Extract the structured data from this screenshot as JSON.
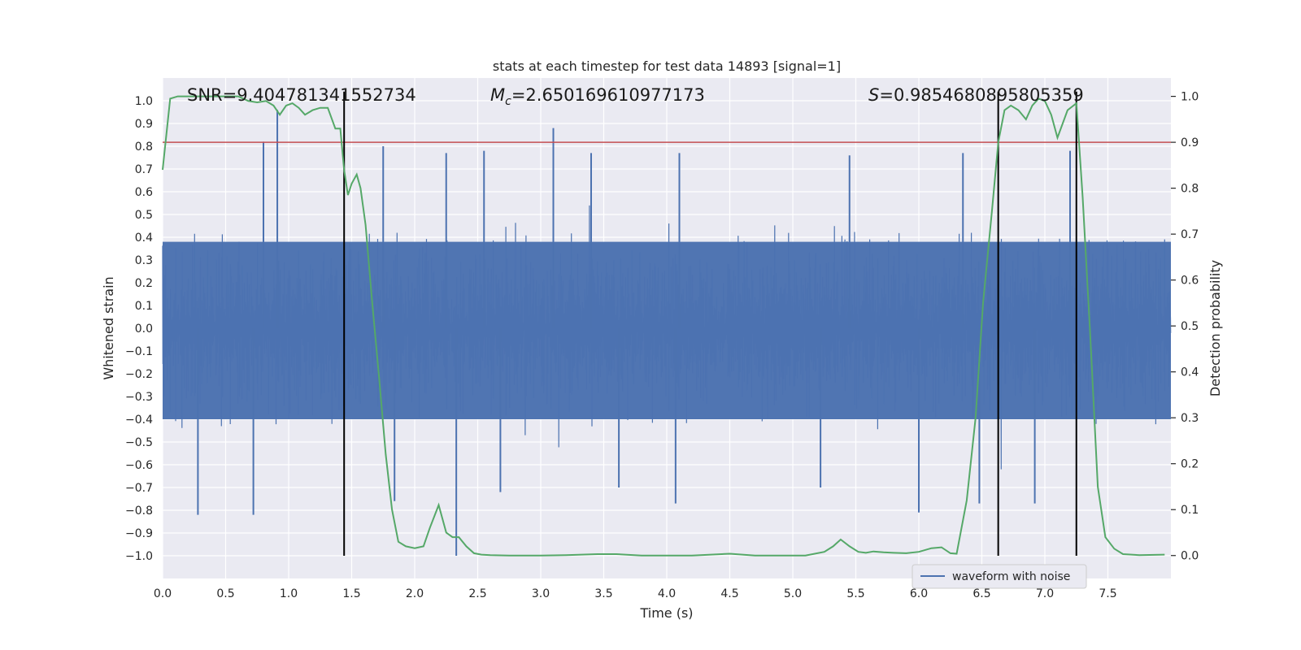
{
  "chart_data": {
    "type": "line",
    "title": "stats at each timestep for test data 14893 [signal=1]",
    "xlabel": "Time (s)",
    "ylabel_left": "Whitened strain",
    "ylabel_right": "Detection probability",
    "xlim": [
      0.0,
      8.0
    ],
    "ylim_left": [
      -1.1,
      1.1
    ],
    "ylim_right": [
      -0.05,
      1.04
    ],
    "xticks": [
      0.0,
      0.5,
      1.0,
      1.5,
      2.0,
      2.5,
      3.0,
      3.5,
      4.0,
      4.5,
      5.0,
      5.5,
      6.0,
      6.5,
      7.0,
      7.5
    ],
    "xtick_labels": [
      "0.0",
      "0.5",
      "1.0",
      "1.5",
      "2.0",
      "2.5",
      "3.0",
      "3.5",
      "4.0",
      "4.5",
      "5.0",
      "5.5",
      "6.0",
      "6.5",
      "7.0",
      "7.5"
    ],
    "yticks_left": [
      1.0,
      0.9,
      0.8,
      0.7,
      0.6,
      0.5,
      0.4,
      0.3,
      0.2,
      0.1,
      0.0,
      -0.1,
      -0.2,
      -0.3,
      -0.4,
      -0.5,
      -0.6,
      -0.7,
      -0.8,
      -0.9,
      -1.0
    ],
    "ytick_labels_left": [
      "1.0",
      "0.9",
      "0.8",
      "0.7",
      "0.6",
      "0.5",
      "0.4",
      "0.3",
      "0.2",
      "0.1",
      "0.0",
      "−0.1",
      "−0.2",
      "−0.3",
      "−0.4",
      "−0.5",
      "−0.6",
      "−0.7",
      "−0.8",
      "−0.9",
      "−1.0"
    ],
    "yticks_right": [
      1.0,
      0.9,
      0.8,
      0.7,
      0.6,
      0.5,
      0.4,
      0.3,
      0.2,
      0.1,
      0.0
    ],
    "ytick_labels_right": [
      "1.0",
      "0.9",
      "0.8",
      "0.7",
      "0.6",
      "0.5",
      "0.4",
      "0.3",
      "0.2",
      "0.1",
      "0.0"
    ],
    "grid": true,
    "annotations": {
      "snr": "SNR=9.404781341552734",
      "mc_symbol": "M",
      "mc_sub": "c",
      "mc_value": "=2.650169610977173",
      "s_symbol": "S",
      "s_value": "=0.9854680895805359"
    },
    "threshold": {
      "value": 0.9,
      "axis": "right",
      "color": "#c44e52"
    },
    "vertical_lines": [
      1.44,
      6.63,
      7.25
    ],
    "waveform": {
      "name": "waveform with noise",
      "color": "#4c72b0",
      "typical_envelope_upper": 0.38,
      "typical_envelope_lower": -0.4,
      "spikes": [
        [
          0.91,
          0.96
        ],
        [
          0.8,
          0.82
        ],
        [
          3.1,
          0.88
        ],
        [
          1.75,
          0.8
        ],
        [
          2.25,
          0.77
        ],
        [
          2.55,
          0.78
        ],
        [
          3.4,
          0.77
        ],
        [
          4.1,
          0.77
        ],
        [
          5.45,
          0.76
        ],
        [
          6.35,
          0.77
        ],
        [
          7.2,
          0.78
        ],
        [
          0.28,
          -0.82
        ],
        [
          0.72,
          -0.82
        ],
        [
          1.84,
          -0.76
        ],
        [
          2.33,
          -1.0
        ],
        [
          4.07,
          -0.77
        ],
        [
          6.0,
          -0.81
        ],
        [
          6.48,
          -0.77
        ],
        [
          6.92,
          -0.77
        ],
        [
          2.68,
          -0.72
        ],
        [
          3.62,
          -0.7
        ],
        [
          5.22,
          -0.7
        ]
      ]
    },
    "probability": {
      "color": "#55a868",
      "x": [
        0.0,
        0.06,
        0.12,
        0.2,
        0.3,
        0.45,
        0.6,
        0.68,
        0.75,
        0.82,
        0.88,
        0.93,
        0.98,
        1.03,
        1.08,
        1.13,
        1.19,
        1.25,
        1.31,
        1.37,
        1.41,
        1.44,
        1.47,
        1.5,
        1.54,
        1.57,
        1.61,
        1.66,
        1.72,
        1.77,
        1.82,
        1.87,
        1.93,
        2.0,
        2.07,
        2.12,
        2.19,
        2.25,
        2.3,
        2.35,
        2.41,
        2.47,
        2.53,
        2.6,
        2.75,
        3.0,
        3.2,
        3.45,
        3.6,
        3.8,
        4.0,
        4.2,
        4.5,
        4.7,
        4.9,
        5.1,
        5.25,
        5.32,
        5.38,
        5.45,
        5.52,
        5.58,
        5.64,
        5.72,
        5.8,
        5.9,
        6.0,
        6.1,
        6.18,
        6.25,
        6.3,
        6.38,
        6.45,
        6.51,
        6.58,
        6.63,
        6.68,
        6.73,
        6.79,
        6.85,
        6.9,
        6.95,
        7.0,
        7.05,
        7.1,
        7.18,
        7.25,
        7.3,
        7.36,
        7.42,
        7.48,
        7.55,
        7.62,
        7.75,
        7.95
      ],
      "y": [
        0.84,
        0.995,
        1.0,
        1.0,
        1.0,
        1.0,
        1.0,
        0.99,
        0.987,
        0.99,
        0.98,
        0.96,
        0.98,
        0.985,
        0.975,
        0.96,
        0.97,
        0.975,
        0.975,
        0.93,
        0.93,
        0.84,
        0.785,
        0.81,
        0.83,
        0.8,
        0.72,
        0.56,
        0.38,
        0.22,
        0.1,
        0.03,
        0.02,
        0.016,
        0.02,
        0.06,
        0.11,
        0.05,
        0.04,
        0.04,
        0.02,
        0.005,
        0.002,
        0.001,
        0.0,
        0.0,
        0.001,
        0.003,
        0.003,
        0.0,
        0.0,
        0.0,
        0.004,
        0.0,
        0.0,
        0.0,
        0.008,
        0.02,
        0.035,
        0.02,
        0.008,
        0.006,
        0.009,
        0.007,
        0.006,
        0.005,
        0.008,
        0.016,
        0.018,
        0.005,
        0.004,
        0.12,
        0.3,
        0.55,
        0.75,
        0.9,
        0.97,
        0.98,
        0.97,
        0.95,
        0.98,
        0.995,
        0.99,
        0.96,
        0.91,
        0.97,
        0.985,
        0.78,
        0.48,
        0.15,
        0.04,
        0.015,
        0.003,
        0.001,
        0.002
      ]
    },
    "legend": {
      "placement": "lower-right",
      "entries": [
        "waveform with noise"
      ]
    }
  }
}
